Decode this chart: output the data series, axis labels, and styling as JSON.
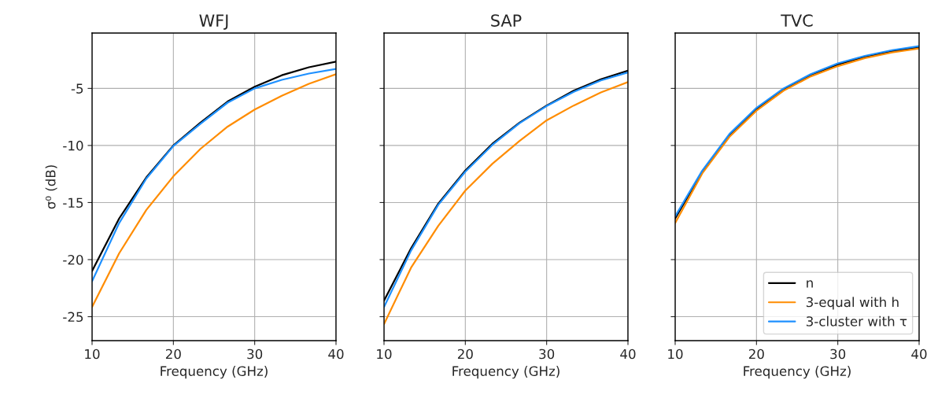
{
  "chart_data": [
    {
      "type": "line",
      "title": "WFJ",
      "xlabel": "Frequency (GHz)",
      "ylabel": "σ⁰ (dB)",
      "x": [
        10,
        13.33,
        16.67,
        20,
        23.33,
        26.67,
        30,
        33.33,
        36.67,
        40
      ],
      "xlim": [
        10,
        40
      ],
      "xticks": [
        10,
        20,
        30,
        40
      ],
      "ylim": [
        -27.1,
        -0.15
      ],
      "yticks": [
        -25,
        -20,
        -15,
        -10,
        -5
      ],
      "grid": true,
      "series": [
        {
          "color": "#000000",
          "values": [
            -21.0,
            -16.4,
            -12.8,
            -10.0,
            -8.0,
            -6.15,
            -4.85,
            -3.85,
            -3.15,
            -2.65
          ]
        },
        {
          "color": "#ff8c00",
          "values": [
            -24.15,
            -19.45,
            -15.65,
            -12.7,
            -10.3,
            -8.35,
            -6.85,
            -5.65,
            -4.6,
            -3.75
          ]
        },
        {
          "color": "#1e90ff",
          "values": [
            -21.9,
            -16.8,
            -12.9,
            -10.05,
            -8.1,
            -6.25,
            -5.0,
            -4.25,
            -3.7,
            -3.3
          ]
        }
      ]
    },
    {
      "type": "line",
      "title": "SAP",
      "xlabel": "Frequency (GHz)",
      "x": [
        10,
        13.33,
        16.67,
        20,
        23.33,
        26.67,
        30,
        33.33,
        36.67,
        40
      ],
      "xlim": [
        10,
        40
      ],
      "xticks": [
        10,
        20,
        30,
        40
      ],
      "ylim": [
        -27.1,
        -0.15
      ],
      "yticks": [
        -25,
        -20,
        -15,
        -10,
        -5
      ],
      "grid": true,
      "tick_labels": "x",
      "series": [
        {
          "color": "#000000",
          "values": [
            -23.6,
            -19.0,
            -15.1,
            -12.2,
            -9.85,
            -8.0,
            -6.5,
            -5.2,
            -4.2,
            -3.45
          ]
        },
        {
          "color": "#ff8c00",
          "values": [
            -25.65,
            -20.7,
            -17.05,
            -13.95,
            -11.6,
            -9.6,
            -7.8,
            -6.5,
            -5.35,
            -4.45
          ]
        },
        {
          "color": "#1e90ff",
          "values": [
            -24.15,
            -19.2,
            -15.2,
            -12.3,
            -9.95,
            -8.05,
            -6.55,
            -5.3,
            -4.3,
            -3.6
          ]
        }
      ]
    },
    {
      "type": "line",
      "title": "TVC",
      "xlabel": "Frequency (GHz)",
      "x": [
        10,
        13.33,
        16.67,
        20,
        23.33,
        26.67,
        30,
        33.33,
        36.67,
        40
      ],
      "xlim": [
        10,
        40
      ],
      "xticks": [
        10,
        20,
        30,
        40
      ],
      "ylim": [
        -27.1,
        -0.15
      ],
      "yticks": [
        -25,
        -20,
        -15,
        -10,
        -5
      ],
      "grid": true,
      "tick_labels": "x",
      "legend": "bottom right",
      "series": [
        {
          "name": "n",
          "color": "#000000",
          "values": [
            -16.4,
            -12.3,
            -9.1,
            -6.8,
            -5.1,
            -3.85,
            -2.9,
            -2.25,
            -1.75,
            -1.4
          ]
        },
        {
          "name": "3-equal with h",
          "color": "#ff8c00",
          "values": [
            -16.8,
            -12.45,
            -9.25,
            -6.95,
            -5.2,
            -3.95,
            -3.05,
            -2.35,
            -1.85,
            -1.5
          ]
        },
        {
          "name": "3-cluster with τ",
          "color": "#1e90ff",
          "values": [
            -16.2,
            -12.2,
            -9.0,
            -6.7,
            -5.0,
            -3.75,
            -2.8,
            -2.15,
            -1.65,
            -1.3
          ]
        }
      ]
    }
  ]
}
